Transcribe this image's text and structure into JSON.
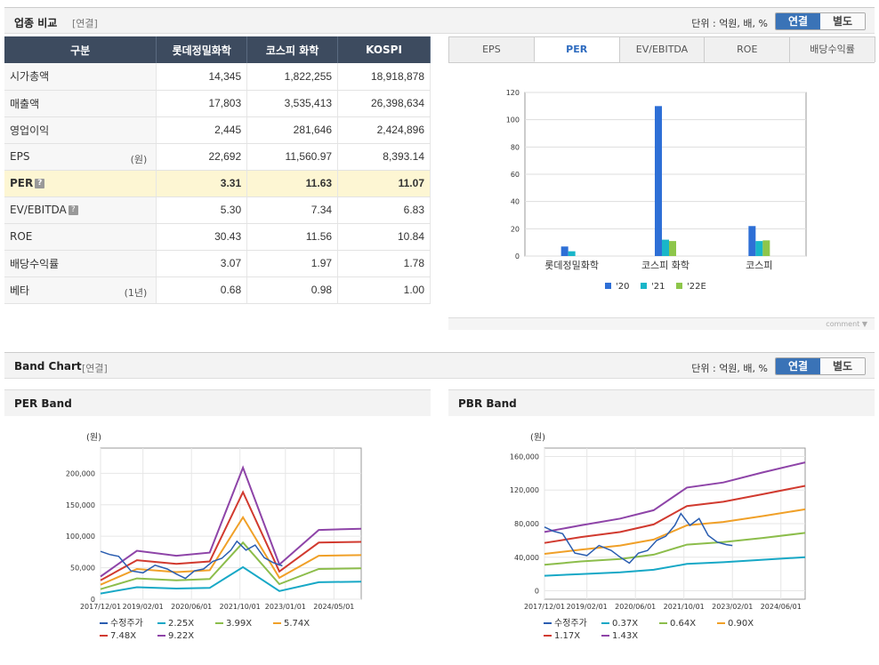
{
  "industry": {
    "title": "업종 비교",
    "sub": "[연결]",
    "unit": "단위 : 억원, 배, %",
    "toggle_on": "연결",
    "toggle_off": "별도",
    "columns": [
      "구분",
      "롯데정밀화학",
      "코스피 화학",
      "KOSPI"
    ],
    "rows": [
      {
        "label": "시가총액",
        "unit": "",
        "help": false,
        "values": [
          "14,345",
          "1,822,255",
          "18,918,878"
        ]
      },
      {
        "label": "매출액",
        "unit": "",
        "help": false,
        "values": [
          "17,803",
          "3,535,413",
          "26,398,634"
        ]
      },
      {
        "label": "영업이익",
        "unit": "",
        "help": false,
        "values": [
          "2,445",
          "281,646",
          "2,424,896"
        ]
      },
      {
        "label": "EPS",
        "unit": "(원)",
        "help": false,
        "values": [
          "22,692",
          "11,560.97",
          "8,393.14"
        ]
      },
      {
        "label": "PER",
        "unit": "",
        "help": true,
        "values": [
          "3.31",
          "11.63",
          "11.07"
        ]
      },
      {
        "label": "EV/EBITDA",
        "unit": "",
        "help": true,
        "values": [
          "5.30",
          "7.34",
          "6.83"
        ]
      },
      {
        "label": "ROE",
        "unit": "",
        "help": false,
        "values": [
          "30.43",
          "11.56",
          "10.84"
        ]
      },
      {
        "label": "배당수익률",
        "unit": "",
        "help": false,
        "values": [
          "3.07",
          "1.97",
          "1.78"
        ]
      },
      {
        "label": "베타",
        "unit": "(1년)",
        "help": false,
        "values": [
          "0.68",
          "0.98",
          "1.00"
        ]
      }
    ],
    "help_glyph": "?",
    "tabs": [
      "EPS",
      "PER",
      "EV/EBITDA",
      "ROE",
      "배당수익률"
    ],
    "active_tab": 1,
    "comment": "comment ▼"
  },
  "band": {
    "title": "Band Chart",
    "sub": "[연결]",
    "unit": "단위 : 억원, 배, %",
    "toggle_on": "연결",
    "toggle_off": "별도",
    "per_title": "PER Band",
    "pbr_title": "PBR Band"
  },
  "chart_data": [
    {
      "type": "bar",
      "categories": [
        "롯데정밀화학",
        "코스피 화학",
        "코스피"
      ],
      "series": [
        {
          "name": "'20",
          "color": "#2e6fd6",
          "values": [
            7,
            110,
            22
          ]
        },
        {
          "name": "'21",
          "color": "#19b6c9",
          "values": [
            3.5,
            12,
            11
          ]
        },
        {
          "name": "'22E",
          "color": "#8dc64a",
          "values": [
            0,
            11,
            11.5
          ]
        }
      ],
      "ylim": [
        0,
        120
      ],
      "yticks": [
        0,
        20,
        40,
        60,
        80,
        100,
        120
      ],
      "grid": true,
      "legend": "bottom"
    },
    {
      "type": "line",
      "title": "PER Band",
      "ylabel": "(원)",
      "ylim": [
        0,
        240000
      ],
      "yticks": [
        "0",
        "50,000",
        "100,000",
        "150,000",
        "200,000"
      ],
      "ytick_values": [
        0,
        50000,
        100000,
        150000,
        200000
      ],
      "xlim": [
        "2017-12",
        "2025-02"
      ],
      "xticks": [
        "2017/12/01",
        "2019/02/01",
        "2020/06/01",
        "2021/10/01",
        "2023/01/01",
        "2024/05/01"
      ],
      "x": [
        "2017-12",
        "2018-12",
        "2020-01",
        "2020-12",
        "2021-11",
        "2022-11",
        "2023-12",
        "2025-02"
      ],
      "series": [
        {
          "name": "2.25X",
          "color": "#17a8c6",
          "values": [
            9000,
            19000,
            17000,
            18000,
            51000,
            13000,
            27000,
            28000
          ]
        },
        {
          "name": "3.99X",
          "color": "#8cbd4b",
          "values": [
            16000,
            33000,
            30000,
            32000,
            90000,
            24000,
            48000,
            49000
          ]
        },
        {
          "name": "5.74X",
          "color": "#f0a028",
          "values": [
            23000,
            48000,
            43000,
            46000,
            130000,
            34000,
            69000,
            70000
          ]
        },
        {
          "name": "7.48X",
          "color": "#d13a2f",
          "values": [
            30000,
            62000,
            56000,
            60000,
            170000,
            44000,
            90000,
            91000
          ]
        },
        {
          "name": "9.22X",
          "color": "#8e44a8",
          "values": [
            36000,
            77000,
            69000,
            74000,
            209000,
            55000,
            110000,
            112000
          ]
        }
      ],
      "price": {
        "name": "수정주가",
        "color": "#2a5db0",
        "x": [
          "2017-12",
          "2018-03",
          "2018-06",
          "2018-10",
          "2019-02",
          "2019-06",
          "2019-10",
          "2020-01",
          "2020-04",
          "2020-07",
          "2020-10",
          "2021-01",
          "2021-04",
          "2021-07",
          "2021-09",
          "2021-12",
          "2022-03",
          "2022-06",
          "2022-09",
          "2022-12"
        ],
        "values": [
          76000,
          71000,
          68000,
          45000,
          42000,
          54000,
          48000,
          40000,
          33000,
          45000,
          48000,
          60000,
          65000,
          78000,
          92000,
          78000,
          86000,
          66000,
          58000,
          53000
        ]
      },
      "legend": "bottom"
    },
    {
      "type": "line",
      "title": "PBR Band",
      "ylabel": "(원)",
      "ylim": [
        -10000,
        170000
      ],
      "yticks": [
        "0",
        "40,000",
        "80,000",
        "120,000",
        "160,000"
      ],
      "ytick_values": [
        0,
        40000,
        80000,
        120000,
        160000
      ],
      "xlim": [
        "2017-12",
        "2025-02"
      ],
      "xticks": [
        "2017/12/01",
        "2019/02/01",
        "2020/06/01",
        "2021/10/01",
        "2023/02/01",
        "2024/06/01"
      ],
      "x": [
        "2017-12",
        "2018-12",
        "2020-01",
        "2020-12",
        "2021-11",
        "2022-11",
        "2023-12",
        "2025-02"
      ],
      "series": [
        {
          "name": "0.37X",
          "color": "#17a8c6",
          "values": [
            18000,
            20000,
            22000,
            25000,
            32000,
            34000,
            37000,
            40000
          ]
        },
        {
          "name": "0.64X",
          "color": "#8cbd4b",
          "values": [
            31000,
            35000,
            38000,
            43000,
            55000,
            58000,
            63000,
            69000
          ]
        },
        {
          "name": "0.90X",
          "color": "#f0a028",
          "values": [
            44000,
            49000,
            54000,
            61000,
            78000,
            82000,
            89000,
            97000
          ]
        },
        {
          "name": "1.17X",
          "color": "#d13a2f",
          "values": [
            57000,
            64000,
            70000,
            79000,
            101000,
            106000,
            115000,
            125000
          ]
        },
        {
          "name": "1.43X",
          "color": "#8e44a8",
          "values": [
            70000,
            78000,
            86000,
            96000,
            123000,
            129000,
            141000,
            153000
          ]
        }
      ],
      "price": {
        "name": "수정주가",
        "color": "#2a5db0",
        "x": [
          "2017-12",
          "2018-03",
          "2018-06",
          "2018-10",
          "2019-02",
          "2019-06",
          "2019-10",
          "2020-01",
          "2020-04",
          "2020-07",
          "2020-10",
          "2021-01",
          "2021-04",
          "2021-07",
          "2021-09",
          "2021-12",
          "2022-03",
          "2022-06",
          "2022-09",
          "2022-12",
          "2023-02"
        ],
        "values": [
          76000,
          71000,
          68000,
          45000,
          42000,
          54000,
          48000,
          40000,
          33000,
          45000,
          48000,
          60000,
          65000,
          78000,
          92000,
          78000,
          86000,
          66000,
          58000,
          55000,
          54000
        ]
      },
      "legend": "bottom"
    }
  ]
}
